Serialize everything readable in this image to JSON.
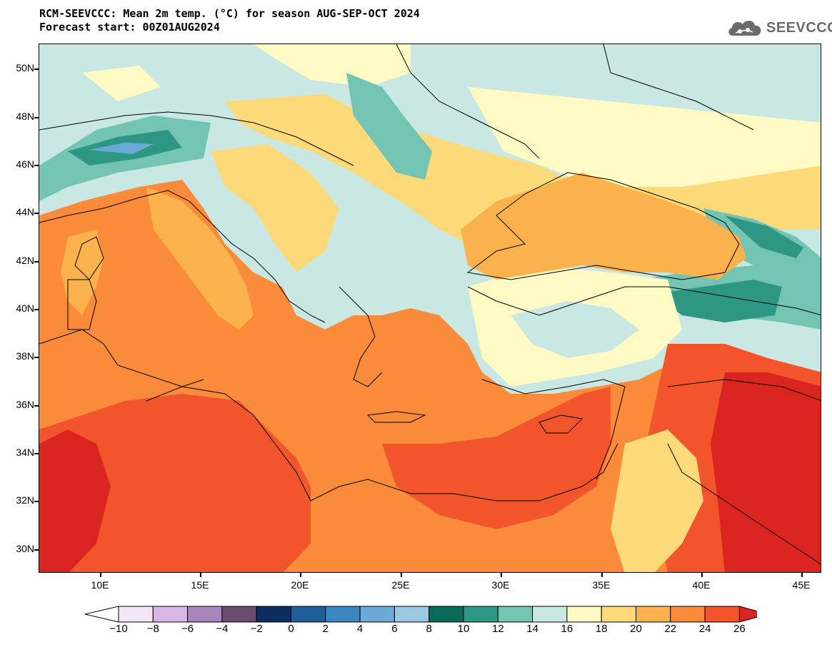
{
  "title": {
    "line1": "RCM-SEEVCCC: Mean 2m temp. (°C) for season AUG-SEP-OCT 2024",
    "line2": "Forecast start: 00Z01AUG2024"
  },
  "logo": {
    "text": "SEEVCCC",
    "icon": "cloud-icon",
    "color": "#6b6b6b"
  },
  "map": {
    "variable": "Mean 2m temp. (°C)",
    "lon_range": [
      7,
      46
    ],
    "lat_range": [
      29,
      51
    ],
    "lat_ticks": [
      "50N",
      "48N",
      "46N",
      "44N",
      "42N",
      "40N",
      "38N",
      "36N",
      "34N",
      "32N",
      "30N"
    ],
    "lon_ticks": [
      "10E",
      "15E",
      "20E",
      "25E",
      "30E",
      "35E",
      "40E",
      "45E"
    ]
  },
  "colorbar": {
    "labels": [
      "−10",
      "−8",
      "−6",
      "−4",
      "−2",
      "0",
      "2",
      "4",
      "6",
      "8",
      "10",
      "12",
      "14",
      "16",
      "18",
      "20",
      "22",
      "24",
      "26"
    ],
    "below_color": "#ffffff",
    "colors": [
      "#f1e5f7",
      "#d8b6e6",
      "#a885bd",
      "#6b4c6e",
      "#0b2e5f",
      "#1f5f99",
      "#3a86c3",
      "#6aaad6",
      "#9cc9e2",
      "#0a6a5a",
      "#2d9783",
      "#74c4b4",
      "#c9e8e4",
      "#fff9c4",
      "#fdda79",
      "#fbb24c",
      "#f98b3a",
      "#f2552c"
    ],
    "above_color": "#d92420"
  }
}
